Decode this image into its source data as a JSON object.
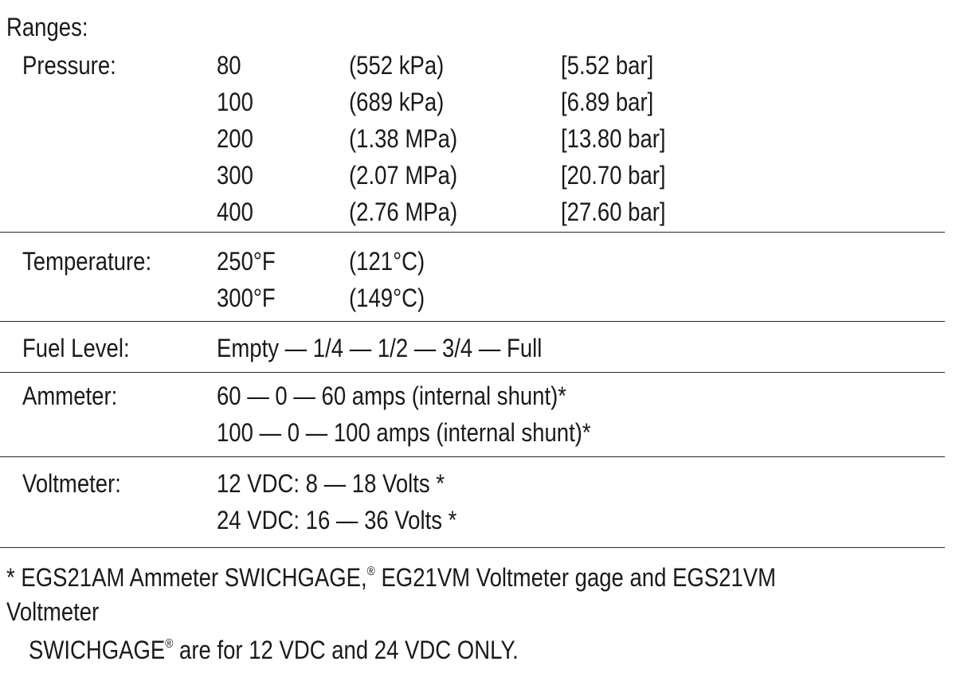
{
  "heading": "Ranges:",
  "pressure": {
    "label": "Pressure:",
    "rows": [
      {
        "psi": "80",
        "kpa": "(552 kPa)",
        "bar": "[5.52 bar]"
      },
      {
        "psi": "100",
        "kpa": "(689 kPa)",
        "bar": "[6.89 bar]"
      },
      {
        "psi": "200",
        "kpa": "(1.38 MPa)",
        "bar": "[13.80 bar]"
      },
      {
        "psi": "300",
        "kpa": "(2.07 MPa)",
        "bar": "[20.70 bar]"
      },
      {
        "psi": "400",
        "kpa": "(2.76 MPa)",
        "bar": "[27.60 bar]"
      }
    ]
  },
  "temperature": {
    "label": "Temperature:",
    "rows": [
      {
        "f": "250°F",
        "c": "(121°C)"
      },
      {
        "f": "300°F",
        "c": "(149°C)"
      }
    ]
  },
  "fuel": {
    "label": "Fuel Level:",
    "value": "Empty — 1/4 — 1/2 — 3/4 — Full"
  },
  "ammeter": {
    "label": "Ammeter:",
    "rows": [
      "60 — 0 — 60 amps (internal shunt)*",
      "100 — 0 — 100 amps (internal shunt)*"
    ]
  },
  "voltmeter": {
    "label": "Voltmeter:",
    "rows": [
      "12 VDC: 8 — 18 Volts *",
      "24 VDC: 16 — 36 Volts *"
    ]
  },
  "footnote": {
    "line1_a": "* EGS21AM Ammeter SWICHGAGE,",
    "reg_mark": "®",
    "line1_b": " EG21VM Voltmeter gage and EGS21VM",
    "line2": "Voltmeter",
    "line3_a": "SWICHGAGE",
    "line3_b": " are for 12 VDC and 24 VDC ONLY."
  }
}
